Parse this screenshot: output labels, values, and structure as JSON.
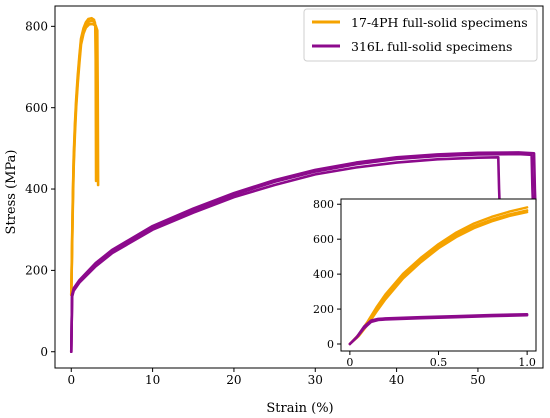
{
  "chart_data": [
    {
      "type": "line",
      "title": "",
      "xlabel": "Strain (%)",
      "ylabel": "Stress (MPa)",
      "xlim": [
        -2,
        58
      ],
      "ylim": [
        -40,
        850
      ],
      "xticks": [
        0,
        10,
        20,
        30,
        40,
        50
      ],
      "yticks": [
        0,
        200,
        400,
        600,
        800
      ],
      "grid": false,
      "legend_position": "top-right",
      "series": [
        {
          "name": "17-4PH full-solid specimens",
          "color": "#F5A300",
          "curves": [
            [
              [
                0,
                140
              ],
              [
                0.1,
                260
              ],
              [
                0.2,
                380
              ],
              [
                0.3,
                470
              ],
              [
                0.45,
                550
              ],
              [
                0.6,
                610
              ],
              [
                0.8,
                670
              ],
              [
                1.0,
                720
              ],
              [
                1.2,
                765
              ],
              [
                1.5,
                790
              ],
              [
                1.8,
                805
              ],
              [
                2.2,
                812
              ],
              [
                2.6,
                814
              ],
              [
                2.9,
                810
              ],
              [
                3.0,
                790
              ],
              [
                3.05,
                700
              ],
              [
                3.1,
                430
              ]
            ],
            [
              [
                0,
                140
              ],
              [
                0.1,
                250
              ],
              [
                0.2,
                365
              ],
              [
                0.3,
                455
              ],
              [
                0.45,
                535
              ],
              [
                0.6,
                600
              ],
              [
                0.8,
                660
              ],
              [
                1.0,
                710
              ],
              [
                1.2,
                755
              ],
              [
                1.5,
                782
              ],
              [
                1.8,
                797
              ],
              [
                2.2,
                805
              ],
              [
                2.6,
                806
              ],
              [
                3.0,
                802
              ],
              [
                3.2,
                790
              ],
              [
                3.25,
                650
              ],
              [
                3.3,
                410
              ]
            ],
            [
              [
                0,
                140
              ],
              [
                0.1,
                270
              ],
              [
                0.2,
                390
              ],
              [
                0.3,
                480
              ],
              [
                0.45,
                560
              ],
              [
                0.6,
                620
              ],
              [
                0.8,
                680
              ],
              [
                1.0,
                728
              ],
              [
                1.2,
                770
              ],
              [
                1.5,
                795
              ],
              [
                1.8,
                810
              ],
              [
                2.1,
                818
              ],
              [
                2.5,
                820
              ],
              [
                2.8,
                816
              ],
              [
                2.95,
                800
              ],
              [
                3.0,
                720
              ],
              [
                3.05,
                420
              ]
            ]
          ]
        },
        {
          "name": "316L full-solid specimens",
          "color": "#8C0A8C",
          "curves": [
            [
              [
                0,
                0
              ],
              [
                0.1,
                135
              ],
              [
                0.3,
                150
              ],
              [
                1,
                170
              ],
              [
                3,
                210
              ],
              [
                5,
                242
              ],
              [
                10,
                300
              ],
              [
                15,
                342
              ],
              [
                20,
                380
              ],
              [
                25,
                410
              ],
              [
                30,
                436
              ],
              [
                35,
                453
              ],
              [
                40,
                465
              ],
              [
                45,
                473
              ],
              [
                50,
                477
              ],
              [
                52.5,
                478
              ],
              [
                52.6,
                400
              ],
              [
                52.65,
                372
              ]
            ],
            [
              [
                0,
                0
              ],
              [
                0.1,
                138
              ],
              [
                0.3,
                153
              ],
              [
                1,
                173
              ],
              [
                3,
                214
              ],
              [
                5,
                246
              ],
              [
                10,
                305
              ],
              [
                15,
                348
              ],
              [
                20,
                386
              ],
              [
                25,
                418
              ],
              [
                30,
                443
              ],
              [
                35,
                461
              ],
              [
                40,
                474
              ],
              [
                45,
                481
              ],
              [
                50,
                485
              ],
              [
                55,
                486
              ],
              [
                56.6,
                484
              ],
              [
                56.7,
                400
              ],
              [
                56.75,
                372
              ]
            ],
            [
              [
                0,
                0
              ],
              [
                0.1,
                140
              ],
              [
                0.3,
                156
              ],
              [
                1,
                176
              ],
              [
                3,
                218
              ],
              [
                5,
                250
              ],
              [
                10,
                309
              ],
              [
                15,
                352
              ],
              [
                20,
                390
              ],
              [
                25,
                422
              ],
              [
                30,
                447
              ],
              [
                35,
                465
              ],
              [
                40,
                478
              ],
              [
                45,
                485
              ],
              [
                50,
                489
              ],
              [
                55,
                490
              ],
              [
                56.9,
                488
              ],
              [
                57.0,
                400
              ],
              [
                57.05,
                372
              ]
            ]
          ]
        }
      ]
    },
    {
      "type": "line",
      "title": "",
      "xlabel": "",
      "ylabel": "",
      "xlim": [
        -0.05,
        1.05
      ],
      "ylim": [
        -40,
        830
      ],
      "xticks": [
        "0",
        "0.5",
        "1.0"
      ],
      "yticks": [
        "0",
        "200",
        "400",
        "600",
        "800"
      ],
      "grid": false,
      "legend_position": "none",
      "series": [
        {
          "name": "17-4PH full-solid specimens",
          "color": "#F5A300",
          "curves": [
            [
              [
                0,
                0
              ],
              [
                0.05,
                50
              ],
              [
                0.1,
                120
              ],
              [
                0.15,
                200
              ],
              [
                0.2,
                270
              ],
              [
                0.3,
                390
              ],
              [
                0.4,
                480
              ],
              [
                0.5,
                560
              ],
              [
                0.6,
                625
              ],
              [
                0.7,
                675
              ],
              [
                0.8,
                712
              ],
              [
                0.9,
                742
              ],
              [
                1.0,
                765
              ]
            ],
            [
              [
                0,
                0
              ],
              [
                0.05,
                45
              ],
              [
                0.1,
                110
              ],
              [
                0.15,
                185
              ],
              [
                0.2,
                255
              ],
              [
                0.3,
                375
              ],
              [
                0.4,
                468
              ],
              [
                0.5,
                548
              ],
              [
                0.6,
                612
              ],
              [
                0.7,
                663
              ],
              [
                0.8,
                702
              ],
              [
                0.9,
                733
              ],
              [
                1.0,
                755
              ]
            ],
            [
              [
                0,
                0
              ],
              [
                0.05,
                55
              ],
              [
                0.1,
                128
              ],
              [
                0.15,
                210
              ],
              [
                0.2,
                283
              ],
              [
                0.3,
                402
              ],
              [
                0.4,
                493
              ],
              [
                0.5,
                572
              ],
              [
                0.6,
                638
              ],
              [
                0.7,
                690
              ],
              [
                0.8,
                728
              ],
              [
                0.9,
                758
              ],
              [
                1.0,
                782
              ]
            ]
          ]
        },
        {
          "name": "316L full-solid specimens",
          "color": "#8C0A8C",
          "curves": [
            [
              [
                0,
                0
              ],
              [
                0.04,
                40
              ],
              [
                0.08,
                95
              ],
              [
                0.12,
                130
              ],
              [
                0.16,
                140
              ],
              [
                0.2,
                143
              ],
              [
                0.4,
                150
              ],
              [
                0.6,
                156
              ],
              [
                0.8,
                162
              ],
              [
                1.0,
                167
              ]
            ],
            [
              [
                0,
                0
              ],
              [
                0.04,
                42
              ],
              [
                0.08,
                100
              ],
              [
                0.12,
                135
              ],
              [
                0.16,
                144
              ],
              [
                0.2,
                147
              ],
              [
                0.4,
                154
              ],
              [
                0.6,
                160
              ],
              [
                0.8,
                166
              ],
              [
                1.0,
                171
              ]
            ],
            [
              [
                0,
                0
              ],
              [
                0.04,
                38
              ],
              [
                0.08,
                90
              ],
              [
                0.12,
                126
              ],
              [
                0.16,
                137
              ],
              [
                0.2,
                140
              ],
              [
                0.4,
                147
              ],
              [
                0.6,
                153
              ],
              [
                0.8,
                159
              ],
              [
                1.0,
                164
              ]
            ]
          ]
        }
      ]
    }
  ]
}
